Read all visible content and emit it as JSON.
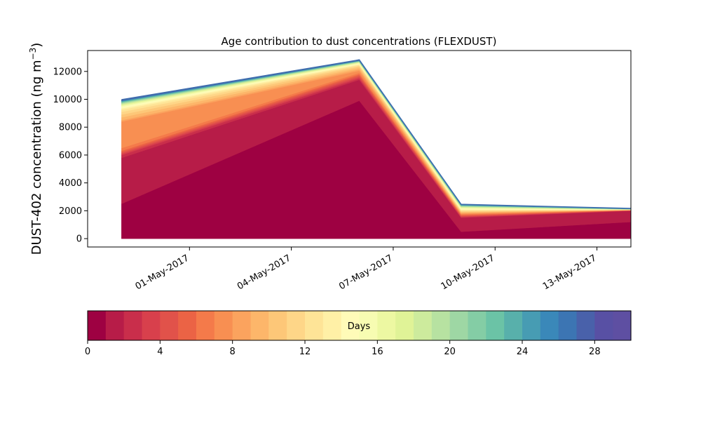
{
  "chart_data": {
    "type": "area",
    "title": "Age contribution to dust concentrations (FLEXDUST)",
    "ylabel_main": "DUST-402 concentration (ng m",
    "ylabel_sup": "−3",
    "ylabel_tail": ")",
    "xlabel": "",
    "x": [
      "2017-04-29",
      "2017-05-06",
      "2017-05-09",
      "2017-05-14"
    ],
    "x_tick_labels": [
      "01-May-2017",
      "04-May-2017",
      "07-May-2017",
      "10-May-2017",
      "13-May-2017"
    ],
    "x_tick_dates": [
      "2017-05-01",
      "2017-05-04",
      "2017-05-07",
      "2017-05-10",
      "2017-05-13"
    ],
    "xlim": [
      "2017-04-28",
      "2017-05-14"
    ],
    "ylim": [
      -600,
      13500
    ],
    "y_ticks": [
      0,
      2000,
      4000,
      6000,
      8000,
      10000,
      12000
    ],
    "y_tick_labels": [
      "0",
      "2000",
      "4000",
      "6000",
      "8000",
      "10000",
      "12000"
    ],
    "grid": false,
    "stacked_cumulative": [
      {
        "age_days": 1,
        "values": [
          2500,
          9900,
          500,
          1200
        ]
      },
      {
        "age_days": 2,
        "values": [
          5800,
          11400,
          1500,
          2000
        ]
      },
      {
        "age_days": 3,
        "values": [
          6000,
          11500,
          1550,
          2010
        ]
      },
      {
        "age_days": 4,
        "values": [
          6100,
          11600,
          1600,
          2020
        ]
      },
      {
        "age_days": 5,
        "values": [
          6200,
          11700,
          1650,
          2030
        ]
      },
      {
        "age_days": 6,
        "values": [
          6300,
          11800,
          1700,
          2040
        ]
      },
      {
        "age_days": 7,
        "values": [
          6500,
          11900,
          1750,
          2050
        ]
      },
      {
        "age_days": 8,
        "values": [
          8400,
          12050,
          1800,
          2055
        ]
      },
      {
        "age_days": 9,
        "values": [
          8500,
          12150,
          1850,
          2060
        ]
      },
      {
        "age_days": 10,
        "values": [
          8700,
          12250,
          1900,
          2065
        ]
      },
      {
        "age_days": 11,
        "values": [
          8900,
          12350,
          1950,
          2070
        ]
      },
      {
        "age_days": 12,
        "values": [
          9100,
          12420,
          2000,
          2075
        ]
      },
      {
        "age_days": 13,
        "values": [
          9250,
          12480,
          2050,
          2080
        ]
      },
      {
        "age_days": 14,
        "values": [
          9350,
          12530,
          2100,
          2085
        ]
      },
      {
        "age_days": 15,
        "values": [
          9450,
          12570,
          2150,
          2090
        ]
      },
      {
        "age_days": 16,
        "values": [
          9520,
          12600,
          2200,
          2095
        ]
      },
      {
        "age_days": 17,
        "values": [
          9580,
          12630,
          2240,
          2100
        ]
      },
      {
        "age_days": 18,
        "values": [
          9630,
          12660,
          2270,
          2105
        ]
      },
      {
        "age_days": 19,
        "values": [
          9680,
          12680,
          2300,
          2110
        ]
      },
      {
        "age_days": 20,
        "values": [
          9720,
          12700,
          2330,
          2115
        ]
      },
      {
        "age_days": 21,
        "values": [
          9760,
          12720,
          2350,
          2120
        ]
      },
      {
        "age_days": 22,
        "values": [
          9790,
          12735,
          2370,
          2125
        ]
      },
      {
        "age_days": 23,
        "values": [
          9820,
          12750,
          2390,
          2130
        ]
      },
      {
        "age_days": 24,
        "values": [
          9850,
          12765,
          2405,
          2135
        ]
      },
      {
        "age_days": 25,
        "values": [
          9880,
          12775,
          2420,
          2140
        ]
      },
      {
        "age_days": 26,
        "values": [
          9900,
          12785,
          2430,
          2145
        ]
      },
      {
        "age_days": 27,
        "values": [
          9920,
          12795,
          2440,
          2150
        ]
      },
      {
        "age_days": 28,
        "values": [
          9940,
          12805,
          2450,
          2155
        ]
      },
      {
        "age_days": 29,
        "values": [
          9955,
          12815,
          2455,
          2160
        ]
      },
      {
        "age_days": 30,
        "values": [
          9970,
          12830,
          2460,
          2165
        ]
      }
    ],
    "colorbar": {
      "label": "Days",
      "range": [
        0,
        30
      ],
      "ticks": [
        0,
        4,
        8,
        12,
        16,
        20,
        24,
        28
      ],
      "tick_labels": [
        "0",
        "4",
        "8",
        "12",
        "16",
        "20",
        "24",
        "28"
      ],
      "colormap": "Spectral",
      "colors": [
        "#9e0142",
        "#b71c48",
        "#c92e4b",
        "#d8404c",
        "#e1524a",
        "#eb6345",
        "#f47a4a",
        "#f88f52",
        "#fba35e",
        "#fdb66a",
        "#fdc778",
        "#fed688",
        "#fee497",
        "#fff0a6",
        "#fffbb8",
        "#f7fcb2",
        "#edf8a2",
        "#e0f397",
        "#cdeb9d",
        "#b7e2a1",
        "#9ed7a4",
        "#84cda5",
        "#6bc3a6",
        "#58b0ab",
        "#479cb3",
        "#3a88b9",
        "#3c75b3",
        "#4961aa",
        "#5850a4",
        "#5e4fa2"
      ]
    }
  }
}
